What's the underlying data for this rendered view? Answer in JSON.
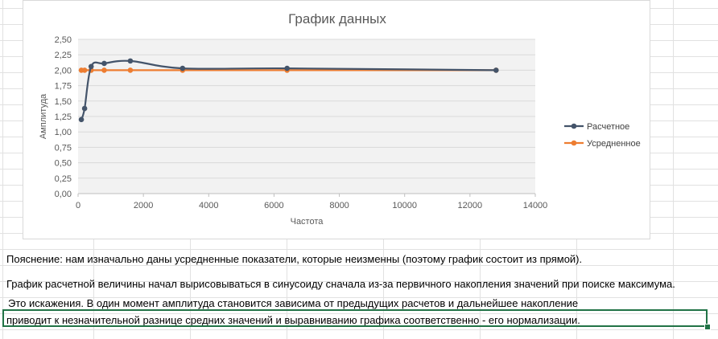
{
  "chart_data": {
    "type": "line",
    "title": "График данных",
    "xlabel": "Частота",
    "ylabel": "Амплитуда",
    "xlim": [
      0,
      14000
    ],
    "ylim": [
      0,
      2.5
    ],
    "x_ticks": [
      "0",
      "2000",
      "4000",
      "6000",
      "8000",
      "10000",
      "12000",
      "14000"
    ],
    "y_ticks": [
      "0,00",
      "0,25",
      "0,50",
      "0,75",
      "1,00",
      "1,25",
      "1,50",
      "1,75",
      "2,00",
      "2,25",
      "2,50"
    ],
    "grid": true,
    "legend_position": "right",
    "series": [
      {
        "name": "Расчетное",
        "color": "#44546A",
        "smooth": true,
        "points": [
          [
            100,
            1.2
          ],
          [
            200,
            1.38
          ],
          [
            400,
            2.06
          ],
          [
            800,
            2.11
          ],
          [
            1600,
            2.15
          ],
          [
            3200,
            2.03
          ],
          [
            6400,
            2.03
          ],
          [
            12800,
            2.0
          ]
        ]
      },
      {
        "name": "Усредненное",
        "color": "#ED7D31",
        "smooth": false,
        "points": [
          [
            100,
            2.0
          ],
          [
            200,
            2.0
          ],
          [
            400,
            2.0
          ],
          [
            800,
            2.0
          ],
          [
            1600,
            2.0
          ],
          [
            3200,
            2.0
          ],
          [
            6400,
            2.0
          ],
          [
            12800,
            2.0
          ]
        ]
      }
    ]
  },
  "notes": [
    "Пояснение: нам изначально даны усредненные показатели, которые неизменны (поэтому график состоит из прямой).",
    "График расчетной величины начал вырисовываться в синусоиду сначала из-за первичного накопления значений при поиске максимума.",
    " Это искажения. В один момент амплитуда становится зависима от предыдущих расчетов и дальнейшее накопление",
    "приводит к незначительной разнице средних значений и выравниванию графика соответственно - его нормализации."
  ]
}
